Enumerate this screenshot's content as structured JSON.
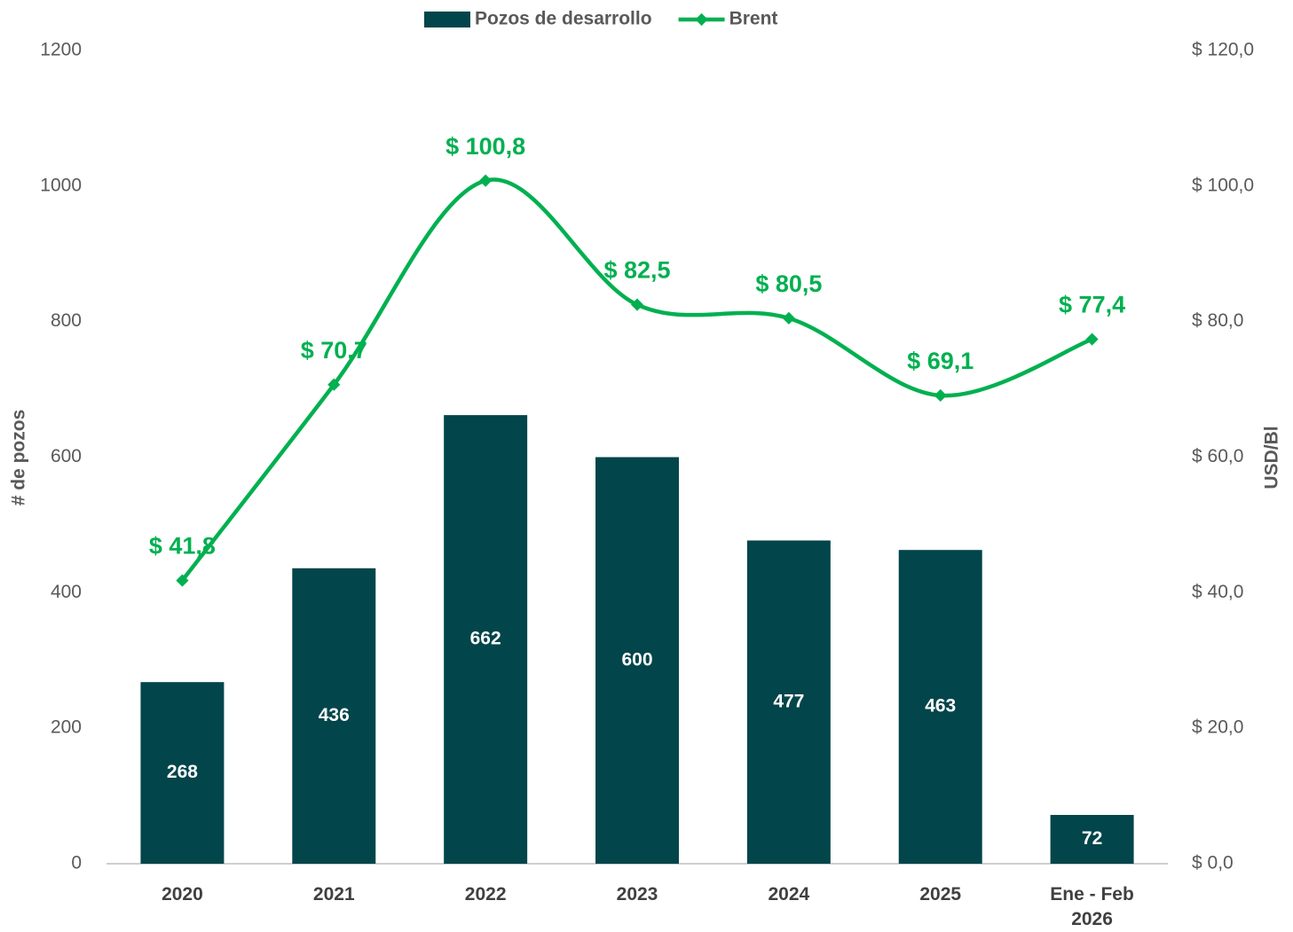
{
  "chart_data": {
    "type": "bar_line",
    "categories": [
      "2020",
      "2021",
      "2022",
      "2023",
      "2024",
      "2025",
      "Ene - Feb 2026"
    ],
    "series": [
      {
        "name": "Pozos de desarrollo",
        "type": "bar",
        "color": "#02454a",
        "values": [
          268,
          436,
          662,
          600,
          477,
          463,
          72
        ]
      },
      {
        "name": "Brent",
        "type": "line",
        "axis": "y2",
        "color": "#00b050",
        "values": [
          41.8,
          70.7,
          100.8,
          82.5,
          80.5,
          69.1,
          77.4
        ],
        "value_labels": [
          "$ 41,8",
          "$ 70,7",
          "$ 100,8",
          "$ 82,5",
          "$ 80,5",
          "$ 69,1",
          "$ 77,4"
        ]
      }
    ],
    "ylabel": "# de pozos",
    "y2label": "USD/Bl",
    "ylim": [
      0,
      1200
    ],
    "yticks": [
      0,
      200,
      400,
      600,
      800,
      1000,
      1200
    ],
    "y2lim": [
      0,
      120
    ],
    "y2ticks": [
      {
        "value": 0,
        "label": "$ 0,0"
      },
      {
        "value": 20,
        "label": "$ 20,0"
      },
      {
        "value": 40,
        "label": "$ 40,0"
      },
      {
        "value": 60,
        "label": "$ 60,0"
      },
      {
        "value": 80,
        "label": "$ 80,0"
      },
      {
        "value": 100,
        "label": "$ 100,0"
      },
      {
        "value": 120,
        "label": "$ 120,0"
      }
    ],
    "legend": "top",
    "grid": false
  }
}
